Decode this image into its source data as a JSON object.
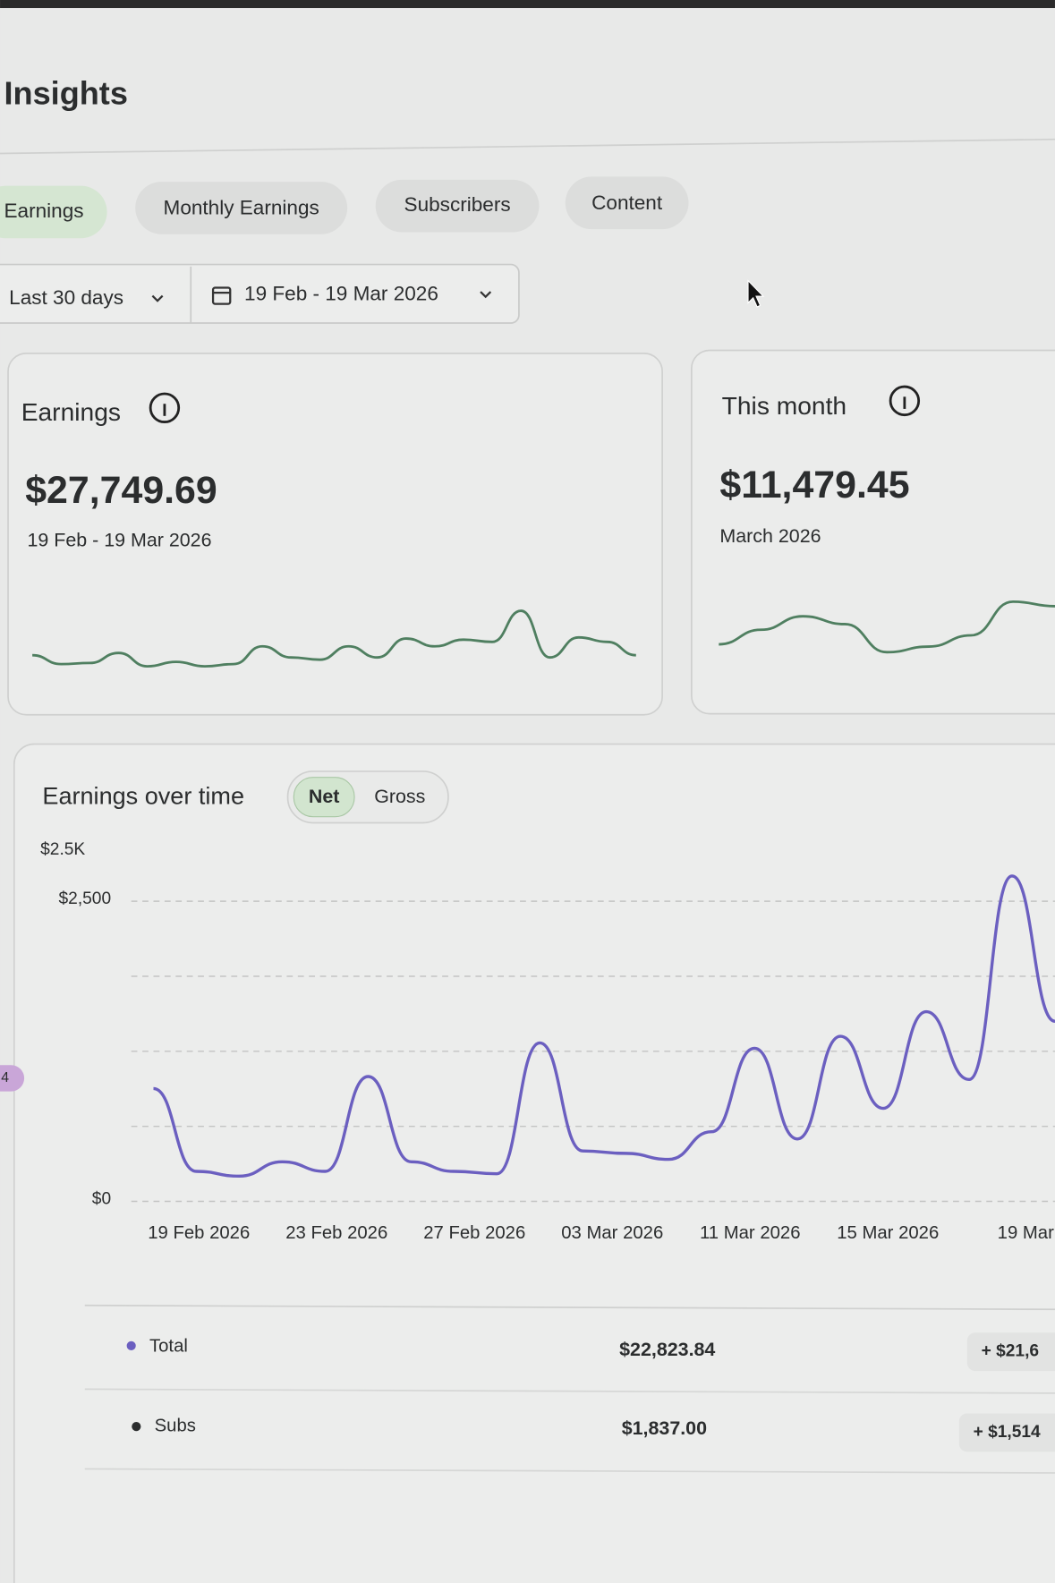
{
  "header": {
    "title": "Insights"
  },
  "tabs": [
    "Earnings",
    "Monthly Earnings",
    "Subscribers",
    "Content"
  ],
  "filters": {
    "period": "Last 30 days",
    "date_range": "19 Feb - 19 Mar 2026"
  },
  "cards": [
    {
      "title": "Earnings",
      "amount": "$27,749.69",
      "caption": "19 Feb - 19 Mar 2026",
      "sparkline": [
        12,
        4,
        5,
        14,
        2,
        6,
        2,
        4,
        20,
        10,
        8,
        20,
        10,
        27,
        20,
        26,
        24,
        52,
        10,
        28,
        24,
        12
      ]
    },
    {
      "title": "This month",
      "amount": "$11,479.45",
      "caption": "March 2026",
      "sparkline": [
        22,
        35,
        47,
        40,
        15,
        20,
        30,
        60,
        56
      ]
    }
  ],
  "chart_data": {
    "type": "line",
    "title": "Earnings over time",
    "toggle": [
      "Net",
      "Gross"
    ],
    "axis_label": "$2.5K",
    "side_badge": "4",
    "x_labels": [
      "19 Feb 2026",
      "23 Feb 2026",
      "27 Feb 2026",
      "03 Mar 2026",
      "11 Mar 2026",
      "15 Mar 2026",
      "19 Mar"
    ],
    "ylim": [
      0,
      2800
    ],
    "yticks": [
      {
        "value": 0,
        "label": "$0"
      },
      {
        "value": 2500,
        "label": "$2,500"
      }
    ],
    "gridlines": [
      0,
      625,
      1250,
      1875,
      2500
    ],
    "series": [
      {
        "name": "Total",
        "color": "#6b5fc0",
        "values": [
          940,
          250,
          210,
          330,
          250,
          1040,
          330,
          250,
          230,
          1320,
          420,
          400,
          350,
          580,
          1275,
          520,
          1375,
          775,
          1580,
          1015,
          2710,
          1500
        ]
      }
    ]
  },
  "summary": [
    {
      "name": "Total",
      "value": "$22,823.84",
      "change": "+ $21,6"
    },
    {
      "name": "Subs",
      "value": "$1,837.00",
      "change": "+ $1,514"
    }
  ]
}
